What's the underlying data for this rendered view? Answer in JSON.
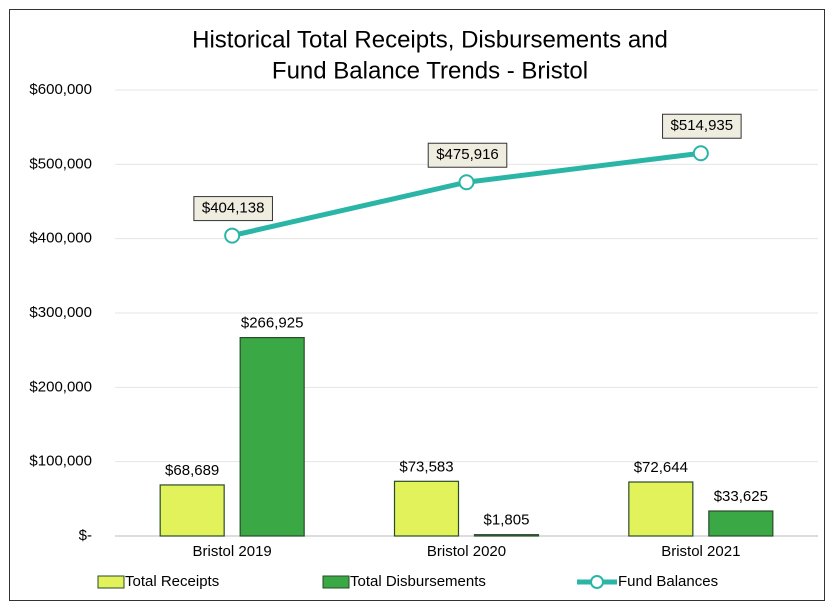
{
  "chart_data": {
    "type": "bar",
    "title": [
      "Historical Total Receipts, Disbursements and",
      "Fund Balance Trends - Bristol"
    ],
    "categories": [
      "Bristol 2019",
      "Bristol 2020",
      "Bristol 2021"
    ],
    "series": [
      {
        "name": "Total Receipts",
        "type": "bar",
        "color": "#e2f25a",
        "values": [
          68689,
          73583,
          72644
        ],
        "value_labels": [
          "$68,689",
          "$73,583",
          "$72,644"
        ]
      },
      {
        "name": "Total Disbursements",
        "type": "bar",
        "color": "#3aa845",
        "values": [
          266925,
          1805,
          33625
        ],
        "value_labels": [
          "$266,925",
          "$1,805",
          "$33,625"
        ]
      },
      {
        "name": "Fund Balances",
        "type": "line",
        "color": "#2bb5a6",
        "values": [
          404138,
          475916,
          514935
        ],
        "value_labels": [
          "$404,138",
          "$475,916",
          "$514,935"
        ]
      }
    ],
    "ylim": [
      0,
      600000
    ],
    "yticks": [
      {
        "value": 0,
        "label": "$-"
      },
      {
        "value": 100000,
        "label": "$100,000"
      },
      {
        "value": 200000,
        "label": "$200,000"
      },
      {
        "value": 300000,
        "label": "$300,000"
      },
      {
        "value": 400000,
        "label": "$400,000"
      },
      {
        "value": 500000,
        "label": "$500,000"
      },
      {
        "value": 600000,
        "label": "$600,000"
      }
    ],
    "grid": true,
    "legend": "bottom"
  }
}
